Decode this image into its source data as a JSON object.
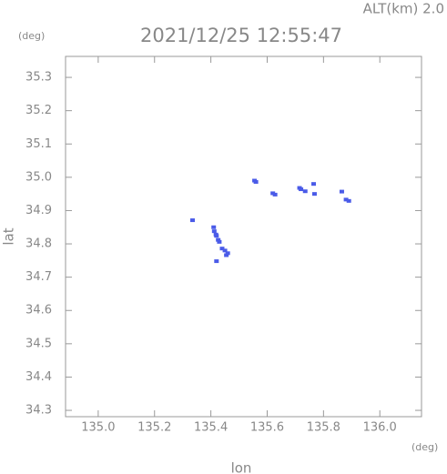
{
  "chart_data": {
    "type": "scatter",
    "title": "2021/12/25 12:55:47",
    "subtitle": "ALT(km) 2.0",
    "y_unit": "(deg)",
    "x_unit": "(deg)",
    "x_label": "lon",
    "y_label": "lat",
    "color": "#4a5be8",
    "x": [
      135.555,
      135.56,
      135.62,
      135.628,
      135.715,
      135.72,
      135.735,
      135.765,
      135.768,
      135.865,
      135.88,
      135.89,
      135.335,
      135.41,
      135.412,
      135.418,
      135.42,
      135.43,
      135.426,
      135.44,
      135.45,
      135.46,
      135.455,
      135.42
    ],
    "values": [
      34.99,
      34.986,
      34.952,
      34.948,
      34.968,
      34.964,
      34.958,
      34.98,
      34.95,
      34.957,
      34.933,
      34.929,
      34.871,
      34.85,
      34.838,
      34.828,
      34.824,
      34.806,
      34.812,
      34.786,
      34.78,
      34.772,
      34.766,
      34.748
    ],
    "xlim": [
      134.884,
      136.148
    ],
    "ylim": [
      34.281,
      35.363
    ],
    "xticks": [
      {
        "value": 135.0,
        "label": "135.0"
      },
      135.2,
      135.4,
      135.6,
      135.8,
      {
        "value": 136.0,
        "label": "136.0"
      }
    ],
    "yticks": [
      34.3,
      34.4,
      34.5,
      34.6,
      34.7,
      34.8,
      34.9,
      {
        "value": 35.0,
        "label": "35.0"
      },
      35.1,
      35.2,
      35.3
    ]
  }
}
